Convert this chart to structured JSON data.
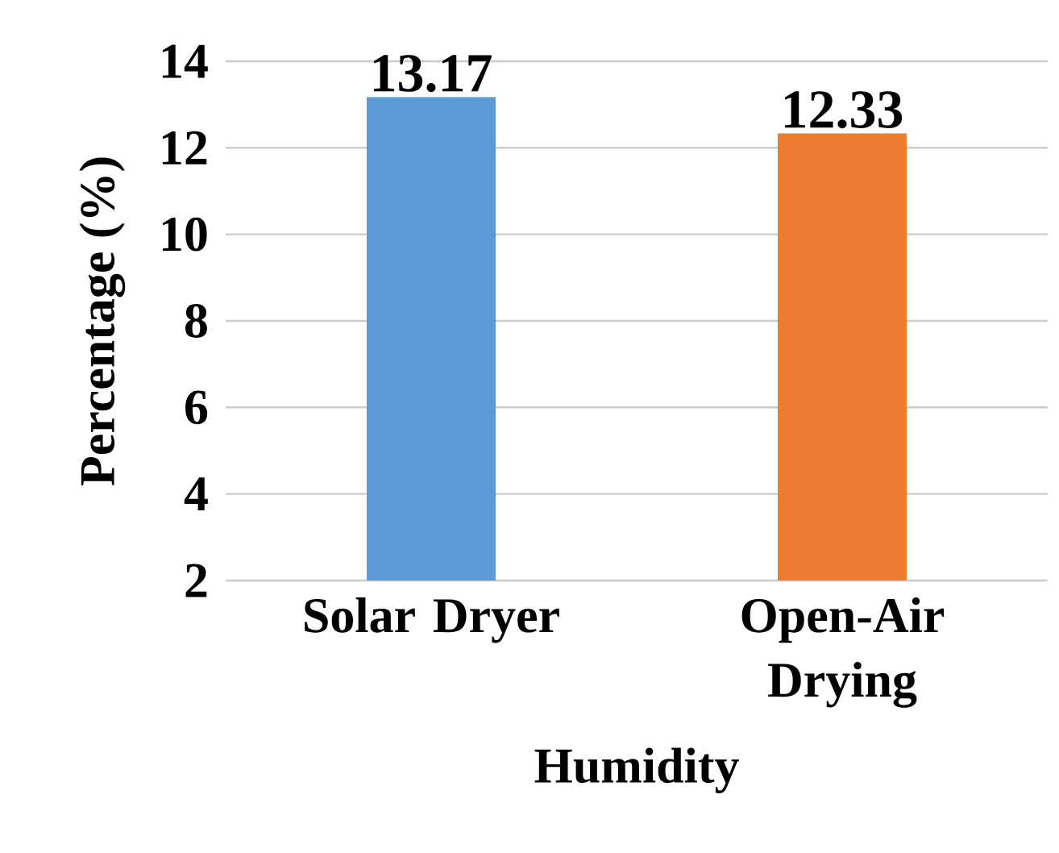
{
  "chart_data": {
    "type": "bar",
    "xlabel": "Humidity",
    "ylabel": "Percentage (%)",
    "categories": [
      "Solar Dryer",
      "Open-Air Drying"
    ],
    "values": [
      13.17,
      12.33
    ],
    "colors": [
      "#5b9bd5",
      "#ed7d31"
    ],
    "value_labels": [
      "13.17",
      "12.33"
    ],
    "ylim": [
      2,
      14
    ],
    "yticks": [
      2,
      4,
      6,
      8,
      10,
      12,
      14
    ],
    "grid": "y"
  }
}
